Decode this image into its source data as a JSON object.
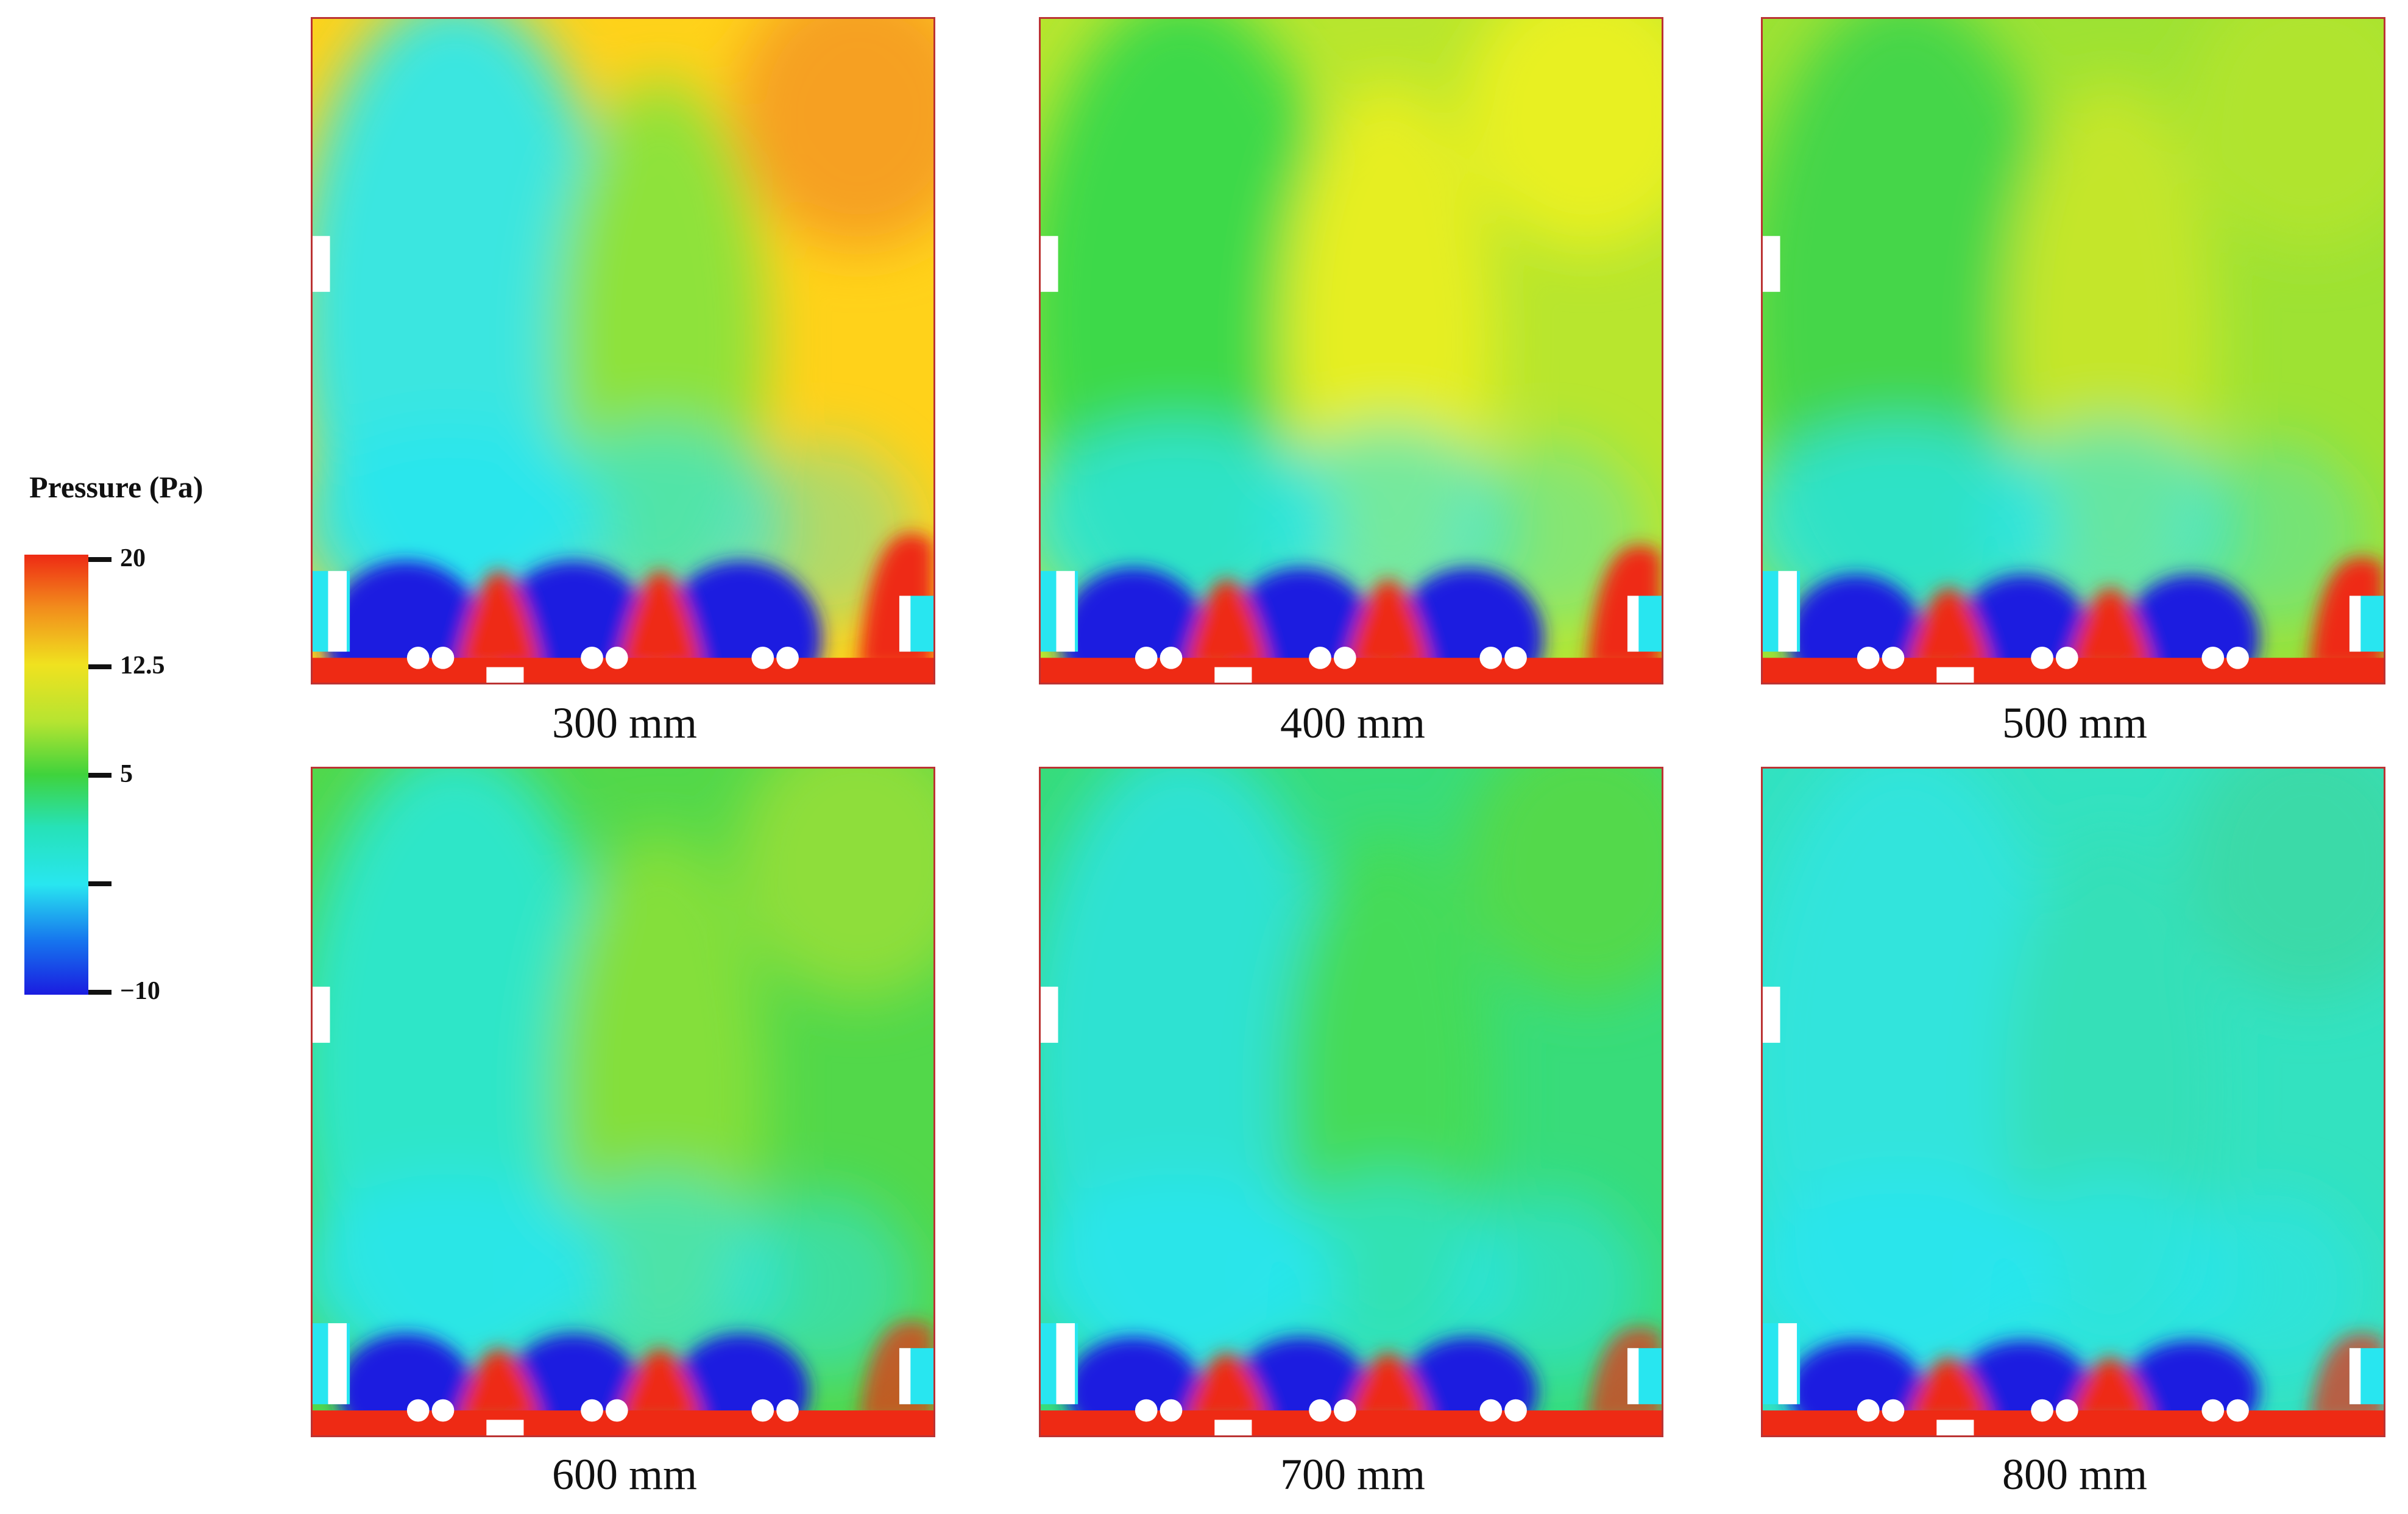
{
  "legend": {
    "title": "Pressure (Pa)",
    "ticks": [
      {
        "value": "20",
        "label": "20"
      },
      {
        "value": "12.5",
        "label": "12.5"
      },
      {
        "value": "5",
        "label": "5"
      },
      {
        "value": "",
        "label": ""
      },
      {
        "value": "-10",
        "label": "−10"
      }
    ]
  },
  "panels": [
    {
      "caption": "300 mm",
      "bg": "#ffd21a",
      "left_tone": "#3be6e0",
      "mid_tone": "#8ee23a",
      "top_right": "#f6a020"
    },
    {
      "caption": "400 mm",
      "bg": "#b8e62e",
      "left_tone": "#3ed94a",
      "mid_tone": "#e6ee22",
      "top_right": "#e8f020"
    },
    {
      "caption": "500 mm",
      "bg": "#9ee233",
      "left_tone": "#44d64a",
      "mid_tone": "#c4e62c",
      "top_right": "#b0e42e"
    },
    {
      "caption": "600 mm",
      "bg": "#52d84a",
      "left_tone": "#2ee6c8",
      "mid_tone": "#84df3a",
      "top_right": "#8ede3a"
    },
    {
      "caption": "700 mm",
      "bg": "#38dc7a",
      "left_tone": "#2de2d2",
      "mid_tone": "#44db58",
      "top_right": "#52d94c"
    },
    {
      "caption": "800 mm",
      "bg": "#33e2c0",
      "left_tone": "#30e4dc",
      "mid_tone": "#36e0b8",
      "top_right": "#3adaa8"
    }
  ],
  "colors": {
    "high": "#ee2a14",
    "low": "#1a1ce0",
    "cyan": "#28e6f0"
  }
}
